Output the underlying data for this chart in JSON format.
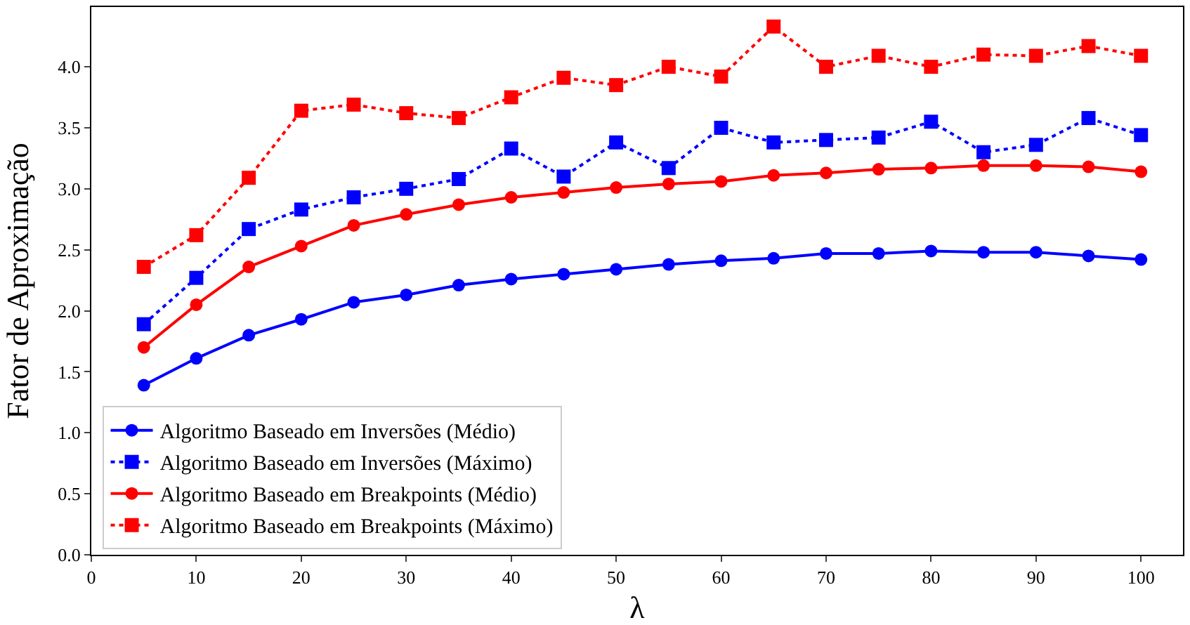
{
  "chart_data": {
    "type": "line",
    "xlabel": "λ",
    "ylabel": "Fator de Aproximação",
    "x": [
      5,
      10,
      15,
      20,
      25,
      30,
      35,
      40,
      45,
      50,
      55,
      60,
      65,
      70,
      75,
      80,
      85,
      90,
      95,
      100
    ],
    "series": [
      {
        "name": "Algoritmo Baseado em Inversões (Médio)",
        "color": "#0000ff",
        "marker": "circle",
        "line_style": "solid",
        "values": [
          1.39,
          1.61,
          1.8,
          1.93,
          2.07,
          2.13,
          2.21,
          2.26,
          2.3,
          2.34,
          2.38,
          2.41,
          2.43,
          2.47,
          2.47,
          2.49,
          2.48,
          2.48,
          2.45,
          2.42
        ]
      },
      {
        "name": "Algoritmo Baseado em Inversões (Máximo)",
        "color": "#0000ff",
        "marker": "square",
        "line_style": "dotted",
        "values": [
          1.89,
          2.27,
          2.67,
          2.83,
          2.93,
          3.0,
          3.08,
          3.33,
          3.1,
          3.38,
          3.17,
          3.5,
          3.38,
          3.4,
          3.42,
          3.55,
          3.3,
          3.36,
          3.58,
          3.44
        ]
      },
      {
        "name": "Algoritmo Baseado em Breakpoints (Médio)",
        "color": "#ff0000",
        "marker": "circle",
        "line_style": "solid",
        "values": [
          1.7,
          2.05,
          2.36,
          2.53,
          2.7,
          2.79,
          2.87,
          2.93,
          2.97,
          3.01,
          3.04,
          3.06,
          3.11,
          3.13,
          3.16,
          3.17,
          3.19,
          3.19,
          3.18,
          3.14
        ]
      },
      {
        "name": "Algoritmo Baseado em Breakpoints (Máximo)",
        "color": "#ff0000",
        "marker": "square",
        "line_style": "dotted",
        "values": [
          2.36,
          2.62,
          3.09,
          3.64,
          3.69,
          3.62,
          3.58,
          3.75,
          3.91,
          3.85,
          4.0,
          3.92,
          4.33,
          4.0,
          4.09,
          4.0,
          4.1,
          4.09,
          4.17,
          4.09
        ]
      }
    ],
    "xlim": [
      0,
      104
    ],
    "xticks": [
      0,
      10,
      20,
      30,
      40,
      50,
      60,
      70,
      80,
      90,
      100
    ],
    "ylim": [
      0,
      4.49
    ],
    "yticks": [
      {
        "value": 0,
        "label": "0.0"
      },
      {
        "value": 0.5,
        "label": "0.5"
      },
      {
        "value": 1,
        "label": "1.0"
      },
      {
        "value": 1.5,
        "label": "1.5"
      },
      {
        "value": 2,
        "label": "2.0"
      },
      {
        "value": 2.5,
        "label": "2.5"
      },
      {
        "value": 3,
        "label": "3.0"
      },
      {
        "value": 3.5,
        "label": "3.5"
      },
      {
        "value": 4,
        "label": "4.0"
      }
    ],
    "grid": false,
    "legend": "bottom left"
  }
}
